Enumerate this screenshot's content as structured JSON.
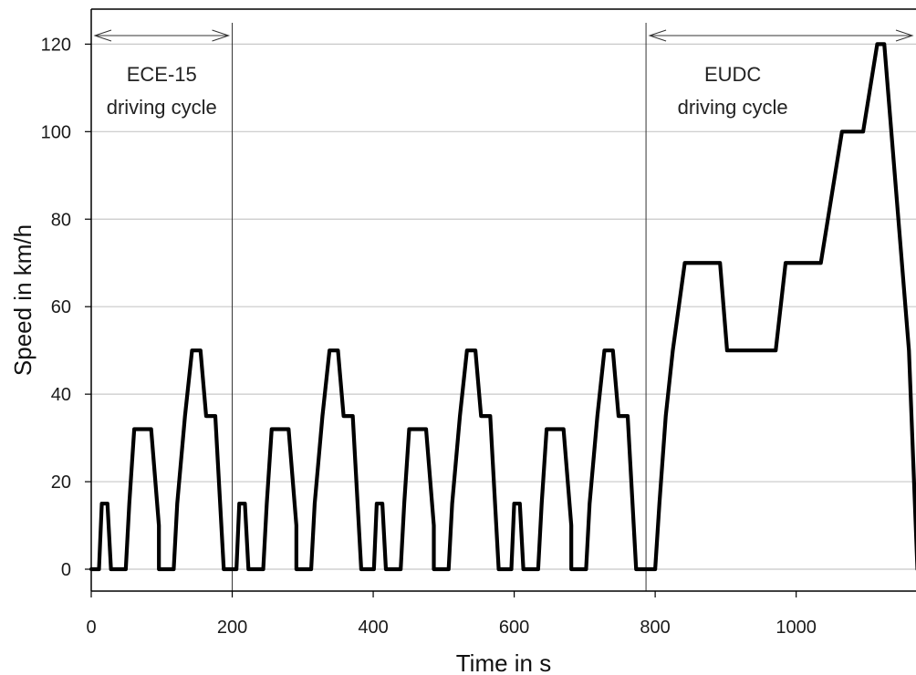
{
  "chart_data": {
    "type": "line",
    "title": "",
    "xlabel": "Time in s",
    "ylabel": "Speed in km/h",
    "xlim": [
      0,
      1170
    ],
    "ylim": [
      -5,
      128
    ],
    "xticks": [
      0,
      200,
      400,
      600,
      800,
      1000
    ],
    "yticks": [
      0,
      20,
      40,
      60,
      80,
      100,
      120
    ],
    "grid": "horizontal",
    "legend": "none",
    "colors": {
      "line": "#000000",
      "grid": "#c8c8c8",
      "axis": "#000000",
      "annotation": "#333333"
    },
    "series": [
      {
        "points": [
          [
            0,
            0
          ],
          [
            11,
            0
          ],
          [
            15,
            15
          ],
          [
            23,
            15
          ],
          [
            28,
            0
          ],
          [
            49,
            0
          ],
          [
            54,
            15
          ],
          [
            61,
            32
          ],
          [
            85,
            32
          ],
          [
            96,
            10
          ],
          [
            96,
            0
          ],
          [
            117,
            0
          ],
          [
            122,
            15
          ],
          [
            133,
            35
          ],
          [
            143,
            50
          ],
          [
            155,
            50
          ],
          [
            163,
            35
          ],
          [
            176,
            35
          ],
          [
            188,
            0
          ],
          [
            195,
            0
          ],
          [
            206,
            0
          ],
          [
            210,
            15
          ],
          [
            218,
            15
          ],
          [
            223,
            0
          ],
          [
            244,
            0
          ],
          [
            249,
            15
          ],
          [
            256,
            32
          ],
          [
            280,
            32
          ],
          [
            291,
            10
          ],
          [
            291,
            0
          ],
          [
            312,
            0
          ],
          [
            317,
            15
          ],
          [
            328,
            35
          ],
          [
            338,
            50
          ],
          [
            350,
            50
          ],
          [
            358,
            35
          ],
          [
            371,
            35
          ],
          [
            383,
            0
          ],
          [
            390,
            0
          ],
          [
            401,
            0
          ],
          [
            405,
            15
          ],
          [
            413,
            15
          ],
          [
            418,
            0
          ],
          [
            439,
            0
          ],
          [
            444,
            15
          ],
          [
            451,
            32
          ],
          [
            475,
            32
          ],
          [
            486,
            10
          ],
          [
            486,
            0
          ],
          [
            507,
            0
          ],
          [
            512,
            15
          ],
          [
            523,
            35
          ],
          [
            533,
            50
          ],
          [
            545,
            50
          ],
          [
            553,
            35
          ],
          [
            566,
            35
          ],
          [
            578,
            0
          ],
          [
            585,
            0
          ],
          [
            596,
            0
          ],
          [
            600,
            15
          ],
          [
            608,
            15
          ],
          [
            613,
            0
          ],
          [
            634,
            0
          ],
          [
            639,
            15
          ],
          [
            646,
            32
          ],
          [
            670,
            32
          ],
          [
            681,
            10
          ],
          [
            681,
            0
          ],
          [
            702,
            0
          ],
          [
            707,
            15
          ],
          [
            718,
            35
          ],
          [
            728,
            50
          ],
          [
            740,
            50
          ],
          [
            748,
            35
          ],
          [
            761,
            35
          ],
          [
            773,
            0
          ],
          [
            780,
            0
          ],
          [
            800,
            0
          ],
          [
            806,
            15
          ],
          [
            815,
            35
          ],
          [
            825,
            50
          ],
          [
            842,
            70
          ],
          [
            892,
            70
          ],
          [
            902,
            50
          ],
          [
            971,
            50
          ],
          [
            985,
            70
          ],
          [
            1035,
            70
          ],
          [
            1065,
            100
          ],
          [
            1095,
            100
          ],
          [
            1115,
            120
          ],
          [
            1125,
            120
          ],
          [
            1160,
            50
          ],
          [
            1172,
            0
          ]
        ]
      }
    ],
    "annotations": [
      {
        "line1": "ECE-15",
        "line2": "driving cycle",
        "x_start": 0,
        "x_end": 200
      },
      {
        "line1": "EUDC",
        "line2": "driving cycle",
        "x_start": 787,
        "x_end": 1170
      }
    ]
  }
}
